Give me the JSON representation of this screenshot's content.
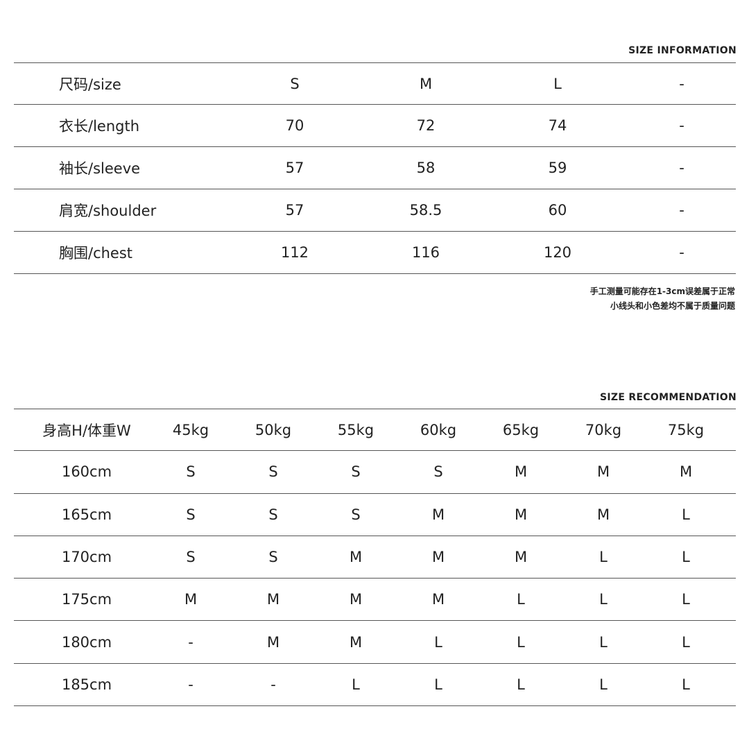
{
  "size_information": {
    "title": "SIZE INFORMATION",
    "rows": [
      {
        "label": "尺码/size",
        "values": [
          "S",
          "M",
          "L",
          "-"
        ]
      },
      {
        "label": "衣长/length",
        "values": [
          "70",
          "72",
          "74",
          "-"
        ]
      },
      {
        "label": "袖长/sleeve",
        "values": [
          "57",
          "58",
          "59",
          "-"
        ]
      },
      {
        "label": "肩宽/shoulder",
        "values": [
          "57",
          "58.5",
          "60",
          "-"
        ]
      },
      {
        "label": "胸围/chest",
        "values": [
          "112",
          "116",
          "120",
          "-"
        ]
      }
    ],
    "notes": [
      "手工测量可能存在1-3cm误差属于正常",
      "小线头和小色差均不属于质量问题"
    ]
  },
  "size_recommendation": {
    "title": "SIZE RECOMMENDATION",
    "header": [
      "身高H/体重W",
      "45kg",
      "50kg",
      "55kg",
      "60kg",
      "65kg",
      "70kg",
      "75kg"
    ],
    "rows": [
      [
        "160cm",
        "S",
        "S",
        "S",
        "S",
        "M",
        "M",
        "M"
      ],
      [
        "165cm",
        "S",
        "S",
        "S",
        "M",
        "M",
        "M",
        "L"
      ],
      [
        "170cm",
        "S",
        "S",
        "M",
        "M",
        "M",
        "L",
        "L"
      ],
      [
        "175cm",
        "M",
        "M",
        "M",
        "M",
        "L",
        "L",
        "L"
      ],
      [
        "180cm",
        "-",
        "M",
        "M",
        "L",
        "L",
        "L",
        "L"
      ],
      [
        "185cm",
        "-",
        "-",
        "L",
        "L",
        "L",
        "L",
        "L"
      ]
    ]
  }
}
